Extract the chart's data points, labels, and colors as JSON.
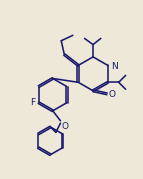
{
  "bg_color": "#ede8d8",
  "line_color": "#1a1a6e",
  "lw": 1.15,
  "figsize": [
    1.43,
    1.79
  ],
  "dpi": 100,
  "xlim": [
    0,
    143
  ],
  "ylim": [
    0,
    179
  ]
}
